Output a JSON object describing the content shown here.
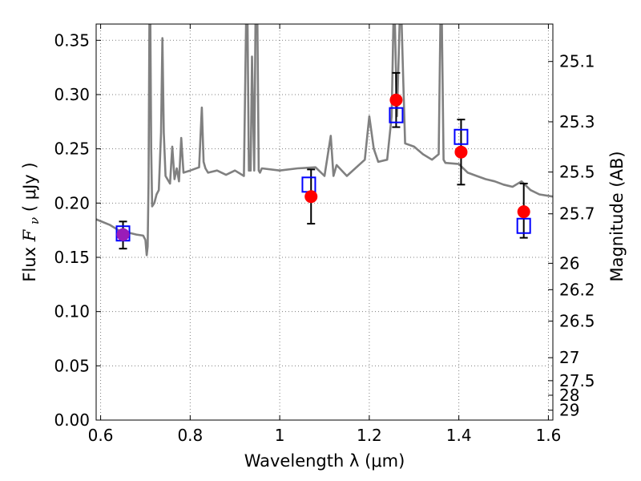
{
  "chart_data": {
    "type": "scatter",
    "xlabel": "Wavelength  λ (μm)",
    "ylabel": "Flux  F_ν  ( μJy )",
    "ylabel_parts": {
      "before": "Flux ",
      "symbol": "F",
      "subscript": "ν",
      "after": " ( μJy )"
    },
    "ylabel_right": "Magnitude (AB)",
    "xlim": [
      0.59,
      1.61
    ],
    "ylim": [
      0.0,
      0.365
    ],
    "grid": true,
    "x_ticks": [
      0.6,
      0.8,
      1.0,
      1.2,
      1.4,
      1.6
    ],
    "x_tick_labels": [
      "0.6",
      "0.8",
      "1",
      "1.2",
      "1.4",
      "1.6"
    ],
    "y_ticks": [
      0.0,
      0.05,
      0.1,
      0.15,
      0.2,
      0.25,
      0.3,
      0.35
    ],
    "y_tick_labels": [
      "0.00",
      "0.05",
      "0.10",
      "0.15",
      "0.20",
      "0.25",
      "0.30",
      "0.35"
    ],
    "right_ticks": [
      {
        "flux": 0.3305,
        "label": "25.1"
      },
      {
        "flux": 0.2749,
        "label": "25.3"
      },
      {
        "flux": 0.2286,
        "label": "25.5"
      },
      {
        "flux": 0.1901,
        "label": "25.7"
      },
      {
        "flux": 0.1445,
        "label": "26"
      },
      {
        "flux": 0.1202,
        "label": "26.2"
      },
      {
        "flux": 0.0912,
        "label": "26.5"
      },
      {
        "flux": 0.0575,
        "label": "27"
      },
      {
        "flux": 0.0363,
        "label": "27.5"
      },
      {
        "flux": 0.0229,
        "label": "28"
      },
      {
        "flux": 0.0091,
        "label": "29"
      }
    ],
    "spectrum": {
      "color": "#808080",
      "x": [
        0.59,
        0.62,
        0.64,
        0.66,
        0.68,
        0.695,
        0.7,
        0.703,
        0.705,
        0.707,
        0.709,
        0.711,
        0.713,
        0.715,
        0.72,
        0.725,
        0.73,
        0.735,
        0.738,
        0.741,
        0.745,
        0.755,
        0.76,
        0.765,
        0.77,
        0.775,
        0.78,
        0.785,
        0.8,
        0.82,
        0.826,
        0.83,
        0.834,
        0.84,
        0.86,
        0.88,
        0.9,
        0.92,
        0.925,
        0.928,
        0.931,
        0.935,
        0.938,
        0.943,
        0.946,
        0.95,
        0.953,
        0.956,
        0.96,
        1.0,
        1.04,
        1.08,
        1.1,
        1.114,
        1.12,
        1.127,
        1.15,
        1.19,
        1.2,
        1.21,
        1.22,
        1.24,
        1.25,
        1.254,
        1.257,
        1.262,
        1.268,
        1.272,
        1.276,
        1.28,
        1.3,
        1.32,
        1.34,
        1.355,
        1.359,
        1.362,
        1.366,
        1.37,
        1.4,
        1.42,
        1.44,
        1.46,
        1.48,
        1.5,
        1.52,
        1.54,
        1.56,
        1.58,
        1.61
      ],
      "y": [
        0.185,
        0.18,
        0.175,
        0.173,
        0.171,
        0.17,
        0.166,
        0.152,
        0.16,
        0.22,
        0.37,
        0.37,
        0.25,
        0.197,
        0.2,
        0.208,
        0.212,
        0.265,
        0.352,
        0.265,
        0.225,
        0.218,
        0.252,
        0.222,
        0.232,
        0.22,
        0.26,
        0.228,
        0.23,
        0.233,
        0.288,
        0.238,
        0.232,
        0.228,
        0.23,
        0.226,
        0.23,
        0.225,
        0.37,
        0.37,
        0.23,
        0.23,
        0.335,
        0.23,
        0.37,
        0.37,
        0.23,
        0.228,
        0.232,
        0.23,
        0.232,
        0.233,
        0.225,
        0.262,
        0.225,
        0.235,
        0.225,
        0.24,
        0.28,
        0.25,
        0.238,
        0.24,
        0.28,
        0.37,
        0.37,
        0.28,
        0.37,
        0.37,
        0.31,
        0.255,
        0.252,
        0.245,
        0.24,
        0.245,
        0.37,
        0.37,
        0.24,
        0.237,
        0.236,
        0.228,
        0.225,
        0.222,
        0.22,
        0.217,
        0.215,
        0.22,
        0.212,
        0.208,
        0.206
      ]
    },
    "observed": {
      "marker": "circle",
      "color": "#ff0000",
      "x": [
        0.65,
        1.07,
        1.26,
        1.405,
        1.545
      ],
      "y": [
        0.171,
        0.206,
        0.295,
        0.247,
        0.192
      ],
      "err_low": [
        0.013,
        0.025,
        0.025,
        0.03,
        0.024
      ],
      "err_high": [
        0.012,
        0.025,
        0.025,
        0.03,
        0.026
      ]
    },
    "model": {
      "marker": "square",
      "color": "#0000ff",
      "x": [
        0.65,
        1.065,
        1.26,
        1.405,
        1.545
      ],
      "y": [
        0.172,
        0.217,
        0.281,
        0.261,
        0.179
      ]
    },
    "special_point_color": "#9a1cb8"
  }
}
